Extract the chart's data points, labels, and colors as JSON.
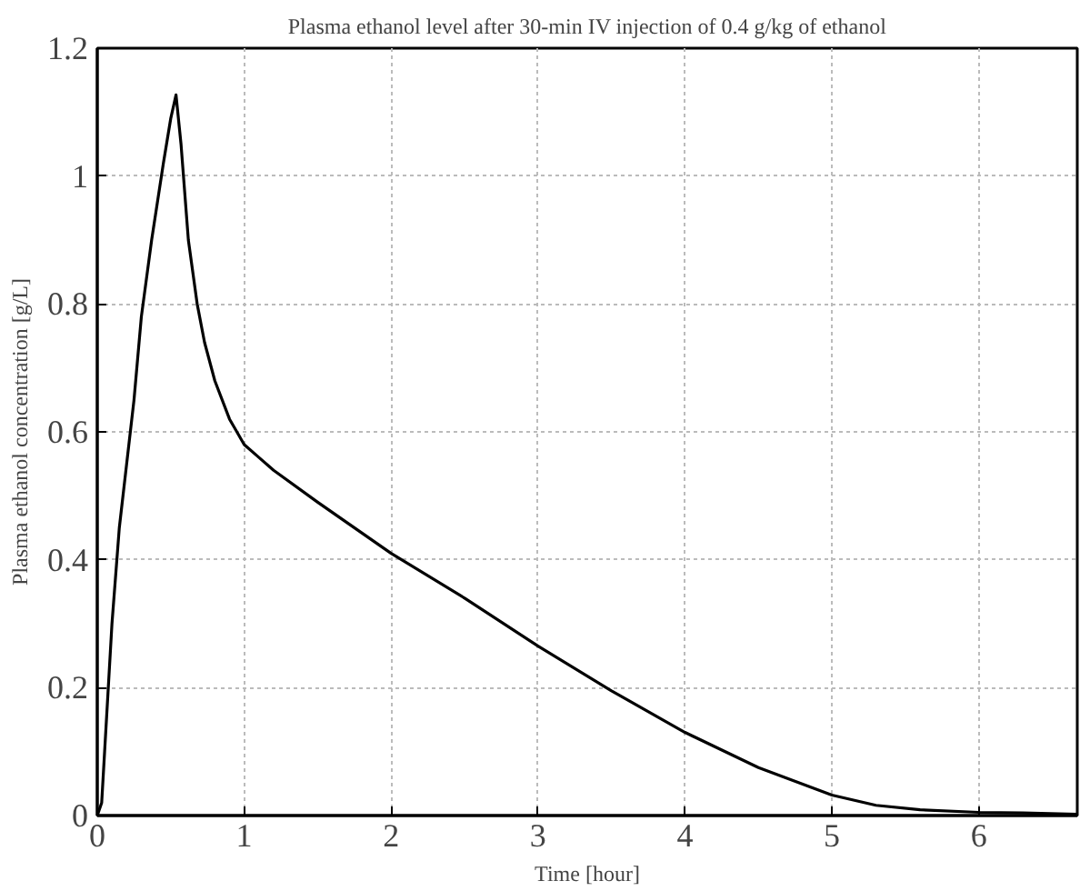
{
  "chart_data": {
    "type": "line",
    "title": "Plasma ethanol level after 30-min IV injection of 0.4 g/kg of ethanol",
    "xlabel": "Time [hour]",
    "ylabel": "Plasma ethanol concentration [g/L]",
    "x": [
      0,
      0.03,
      0.05,
      0.08,
      0.1,
      0.15,
      0.2,
      0.25,
      0.3,
      0.37,
      0.45,
      0.5,
      0.536,
      0.57,
      0.62,
      0.68,
      0.73,
      0.8,
      0.9,
      1.0,
      1.1,
      1.2,
      1.5,
      2.0,
      2.5,
      3.0,
      3.5,
      4.0,
      4.5,
      5.0,
      5.3,
      5.6,
      6.0,
      6.3,
      6.67
    ],
    "series": [
      {
        "color": "#000000",
        "values": [
          0,
          0.02,
          0.1,
          0.22,
          0.3,
          0.45,
          0.55,
          0.65,
          0.78,
          0.9,
          1.02,
          1.09,
          1.127,
          1.05,
          0.9,
          0.8,
          0.74,
          0.68,
          0.62,
          0.58,
          0.56,
          0.54,
          0.49,
          0.41,
          0.34,
          0.265,
          0.195,
          0.13,
          0.075,
          0.032,
          0.016,
          0.009,
          0.005,
          0.004,
          0.002
        ]
      }
    ],
    "xlim": [
      0,
      6.67
    ],
    "ylim": [
      0,
      1.2
    ],
    "xticks": [
      0,
      1,
      2,
      3,
      4,
      5,
      6
    ],
    "yticks": [
      0,
      0.2,
      0.4,
      0.6,
      0.8,
      1,
      1.2
    ],
    "grid": true,
    "line_style": "solid",
    "marker": "none"
  }
}
